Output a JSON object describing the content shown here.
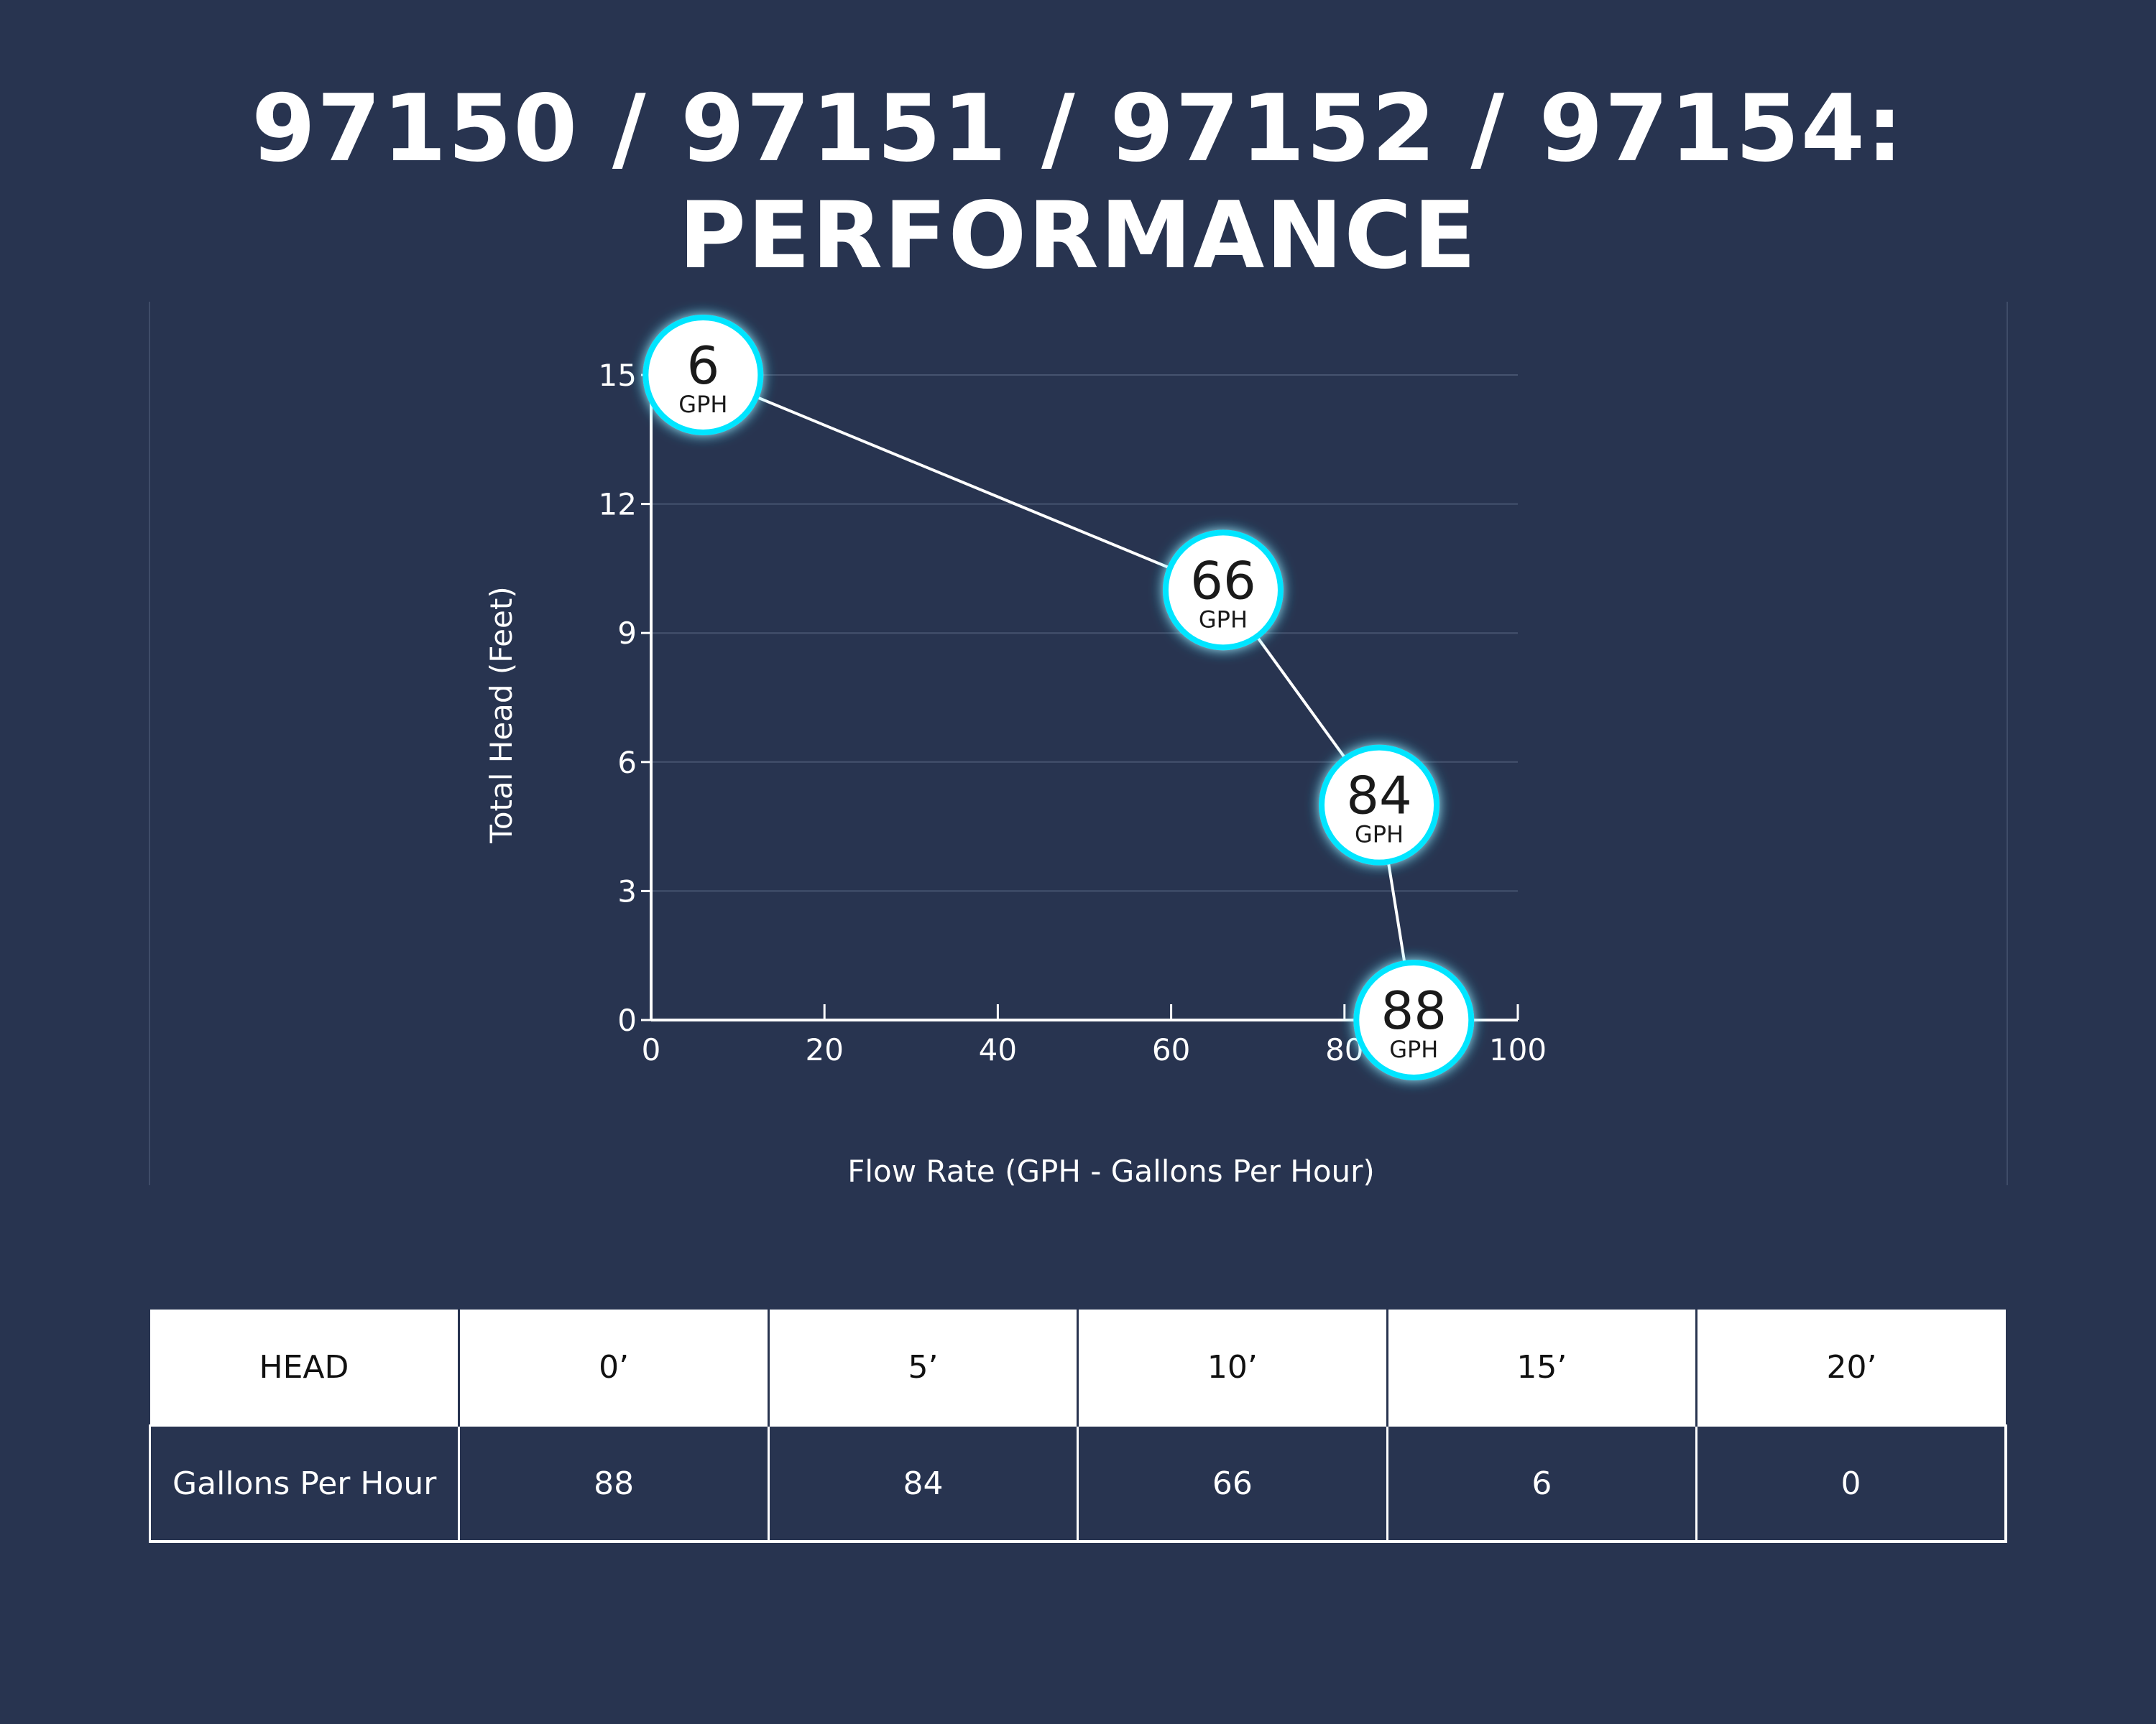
{
  "page": {
    "title": "97150 / 97151 / 97152 / 97154: PERFORMANCE"
  },
  "colors": {
    "background": "#283450",
    "marker_ring": "#00e5ff",
    "marker_fill": "#ffffff",
    "line": "#ffffff"
  },
  "chart_data": {
    "type": "line",
    "title": "",
    "xlabel": "Flow Rate (GPH - Gallons Per Hour)",
    "ylabel": "Total Head (Feet)",
    "xlim": [
      0,
      100
    ],
    "ylim": [
      0,
      15
    ],
    "xticks": [
      0,
      20,
      40,
      60,
      80,
      100
    ],
    "yticks": [
      0,
      3,
      6,
      9,
      12,
      15
    ],
    "grid": "horizontal",
    "marker_unit": "GPH",
    "series": [
      {
        "points": [
          {
            "x": 6,
            "y": 15,
            "label": "6"
          },
          {
            "x": 66,
            "y": 10,
            "label": "66"
          },
          {
            "x": 84,
            "y": 5,
            "label": "84"
          },
          {
            "x": 88,
            "y": 0,
            "label": "88"
          }
        ]
      }
    ]
  },
  "table": {
    "row_header_label": "HEAD",
    "columns": [
      "0’",
      "5’",
      "10’",
      "15’",
      "20’"
    ],
    "row_label": "Gallons Per Hour",
    "values": [
      "88",
      "84",
      "66",
      "6",
      "0"
    ]
  }
}
